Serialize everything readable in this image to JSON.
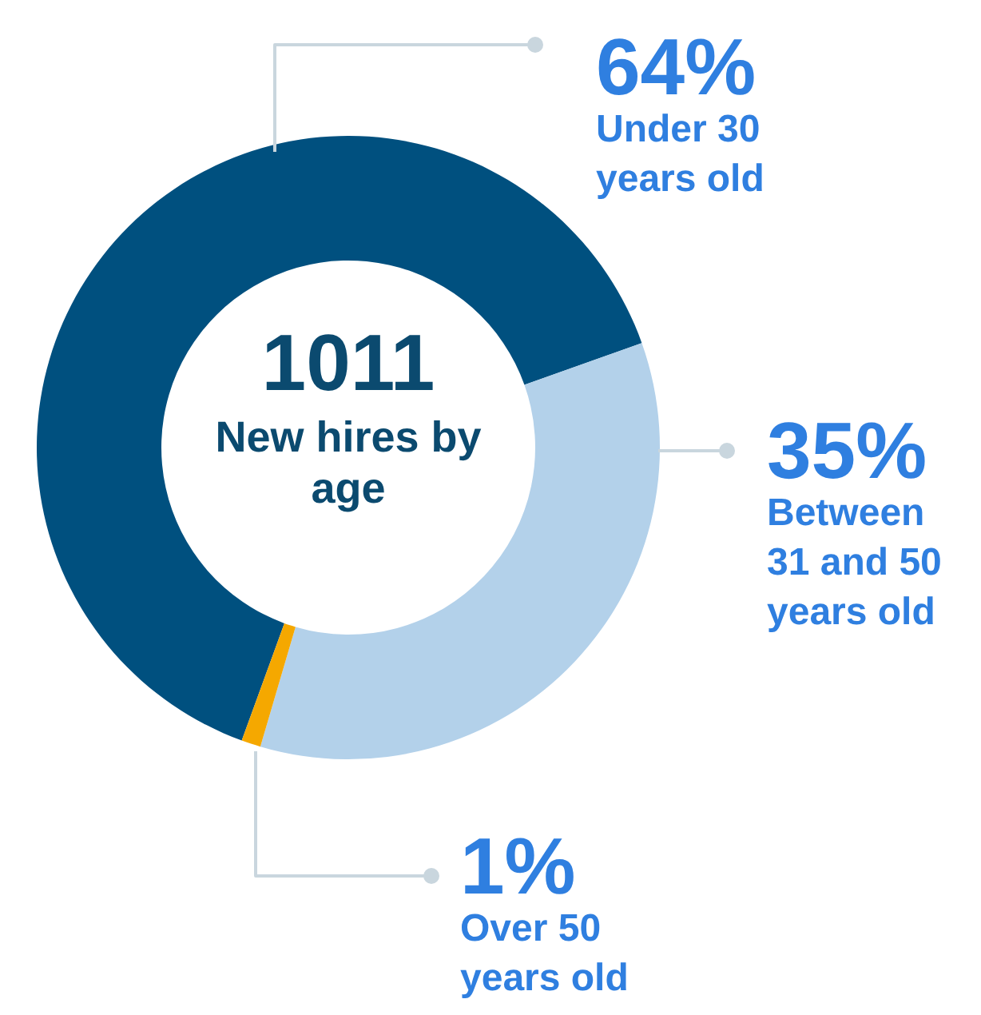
{
  "chart_data": {
    "type": "donut",
    "title": "1011",
    "subtitle": "New hires by age",
    "categories": [
      "Under 30 years old",
      "Between 31 and 50 years old",
      "Over 50 years old"
    ],
    "values": [
      64,
      35,
      1
    ],
    "colors": [
      "#00507f",
      "#b3d1ea",
      "#f5a800"
    ],
    "value_labels": [
      "64%",
      "35%",
      "1%"
    ],
    "legend": false
  }
}
